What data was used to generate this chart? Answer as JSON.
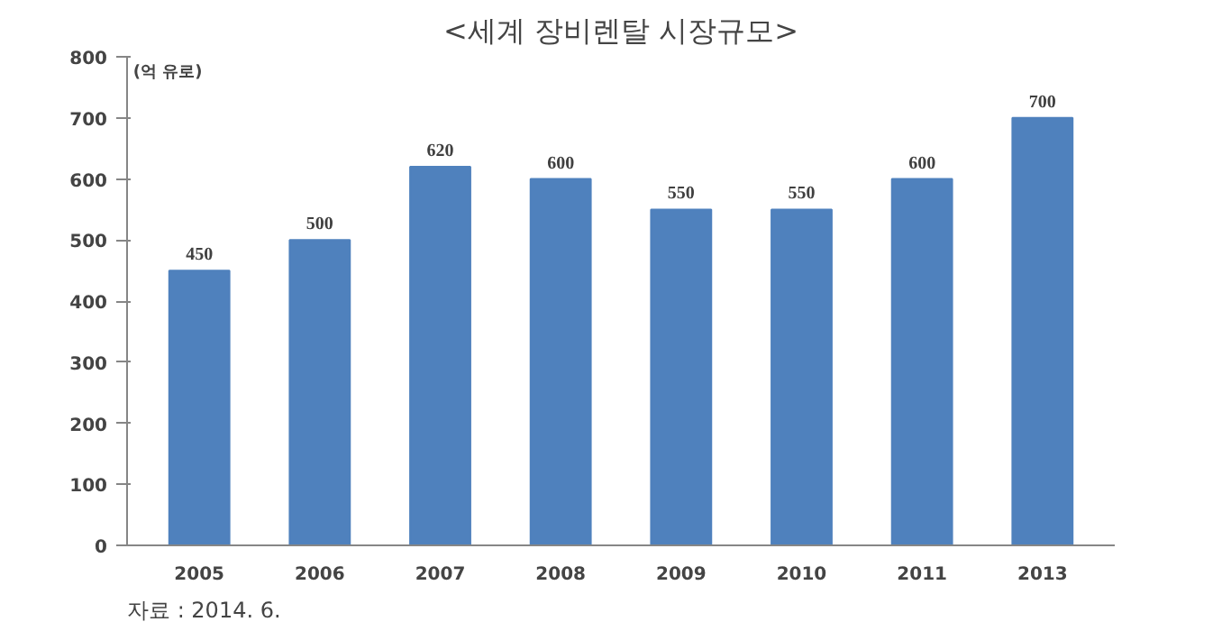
{
  "chart_data": {
    "type": "bar",
    "title": "<세계 장비렌탈 시장규모>",
    "ylabel": "(억 유로)",
    "categories": [
      "2005",
      "2006",
      "2007",
      "2008",
      "2009",
      "2010",
      "2011",
      "2013"
    ],
    "values": [
      450,
      500,
      620,
      600,
      550,
      550,
      600,
      700
    ],
    "color": "#4f81bd",
    "ylim": [
      0,
      800
    ],
    "yticks": [
      0,
      100,
      200,
      300,
      400,
      500,
      600,
      700,
      800
    ],
    "data_labels": true,
    "grid": false,
    "annotations": [
      "자료 : 2014. 6."
    ]
  }
}
